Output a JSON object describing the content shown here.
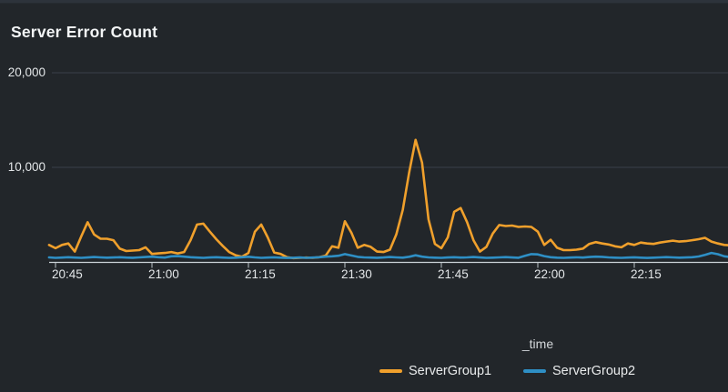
{
  "panel": {
    "title": "Server Error Count"
  },
  "chart_data": {
    "type": "line",
    "title": "Server Error Count",
    "xlabel": "_time",
    "ylabel": "",
    "ylim": [
      0,
      20000
    ],
    "grid": "horizontal",
    "legend_position": "bottom",
    "yticks": [
      {
        "value": 20000,
        "label": "20,000"
      },
      {
        "value": 10000,
        "label": "10,000"
      }
    ],
    "xticks": [
      "20:45",
      "21:00",
      "21:15",
      "21:30",
      "21:45",
      "22:00",
      "22:15"
    ],
    "x_start": "20:44",
    "x_interval_minutes": 1,
    "series": [
      {
        "name": "ServerGroup1",
        "color": "#f0a02c",
        "values": [
          1800,
          1450,
          1800,
          1950,
          1100,
          2700,
          4200,
          2900,
          2450,
          2450,
          2300,
          1400,
          1150,
          1200,
          1250,
          1550,
          850,
          900,
          950,
          1050,
          900,
          1050,
          2300,
          3950,
          4050,
          3200,
          2400,
          1700,
          1050,
          700,
          550,
          950,
          3200,
          3950,
          2600,
          1000,
          850,
          500,
          400,
          430,
          460,
          430,
          500,
          650,
          1650,
          1500,
          4300,
          3100,
          1500,
          1800,
          1600,
          1100,
          1050,
          1300,
          2900,
          5500,
          9500,
          12900,
          10500,
          4500,
          1900,
          1450,
          2600,
          5300,
          5700,
          4200,
          2300,
          1100,
          1600,
          3000,
          3900,
          3800,
          3850,
          3700,
          3750,
          3700,
          3200,
          1800,
          2350,
          1500,
          1250,
          1250,
          1300,
          1400,
          1900,
          2100,
          1950,
          1850,
          1650,
          1550,
          1950,
          1800,
          2050,
          1950,
          1900,
          2050,
          2150,
          2250,
          2150,
          2200,
          2300,
          2400,
          2550,
          2150,
          1950,
          1800,
          1750,
          2100
        ]
      },
      {
        "name": "ServerGroup2",
        "color": "#2e8fc5",
        "values": [
          480,
          430,
          460,
          500,
          460,
          430,
          470,
          520,
          480,
          450,
          470,
          500,
          460,
          440,
          480,
          520,
          560,
          500,
          460,
          600,
          620,
          560,
          500,
          460,
          430,
          470,
          500,
          460,
          430,
          450,
          500,
          550,
          480,
          430,
          460,
          490,
          450,
          420,
          440,
          470,
          430,
          460,
          500,
          560,
          600,
          650,
          830,
          680,
          540,
          480,
          460,
          440,
          470,
          520,
          480,
          450,
          550,
          700,
          560,
          480,
          450,
          430,
          470,
          500,
          460,
          480,
          520,
          470,
          430,
          450,
          480,
          510,
          470,
          440,
          640,
          830,
          800,
          620,
          500,
          450,
          430,
          460,
          490,
          460,
          520,
          560,
          540,
          480,
          450,
          430,
          460,
          490,
          450,
          420,
          450,
          480,
          510,
          480,
          450,
          470,
          500,
          580,
          750,
          950,
          820,
          600,
          520,
          560
        ]
      }
    ]
  },
  "colors": {
    "background": "#22262a",
    "gridline": "#39404a",
    "axis_line": "#ccd3d8",
    "tick": "#b9c1c6",
    "axis_text": "#e3e6e8",
    "title_text": "#f3f5f6"
  }
}
